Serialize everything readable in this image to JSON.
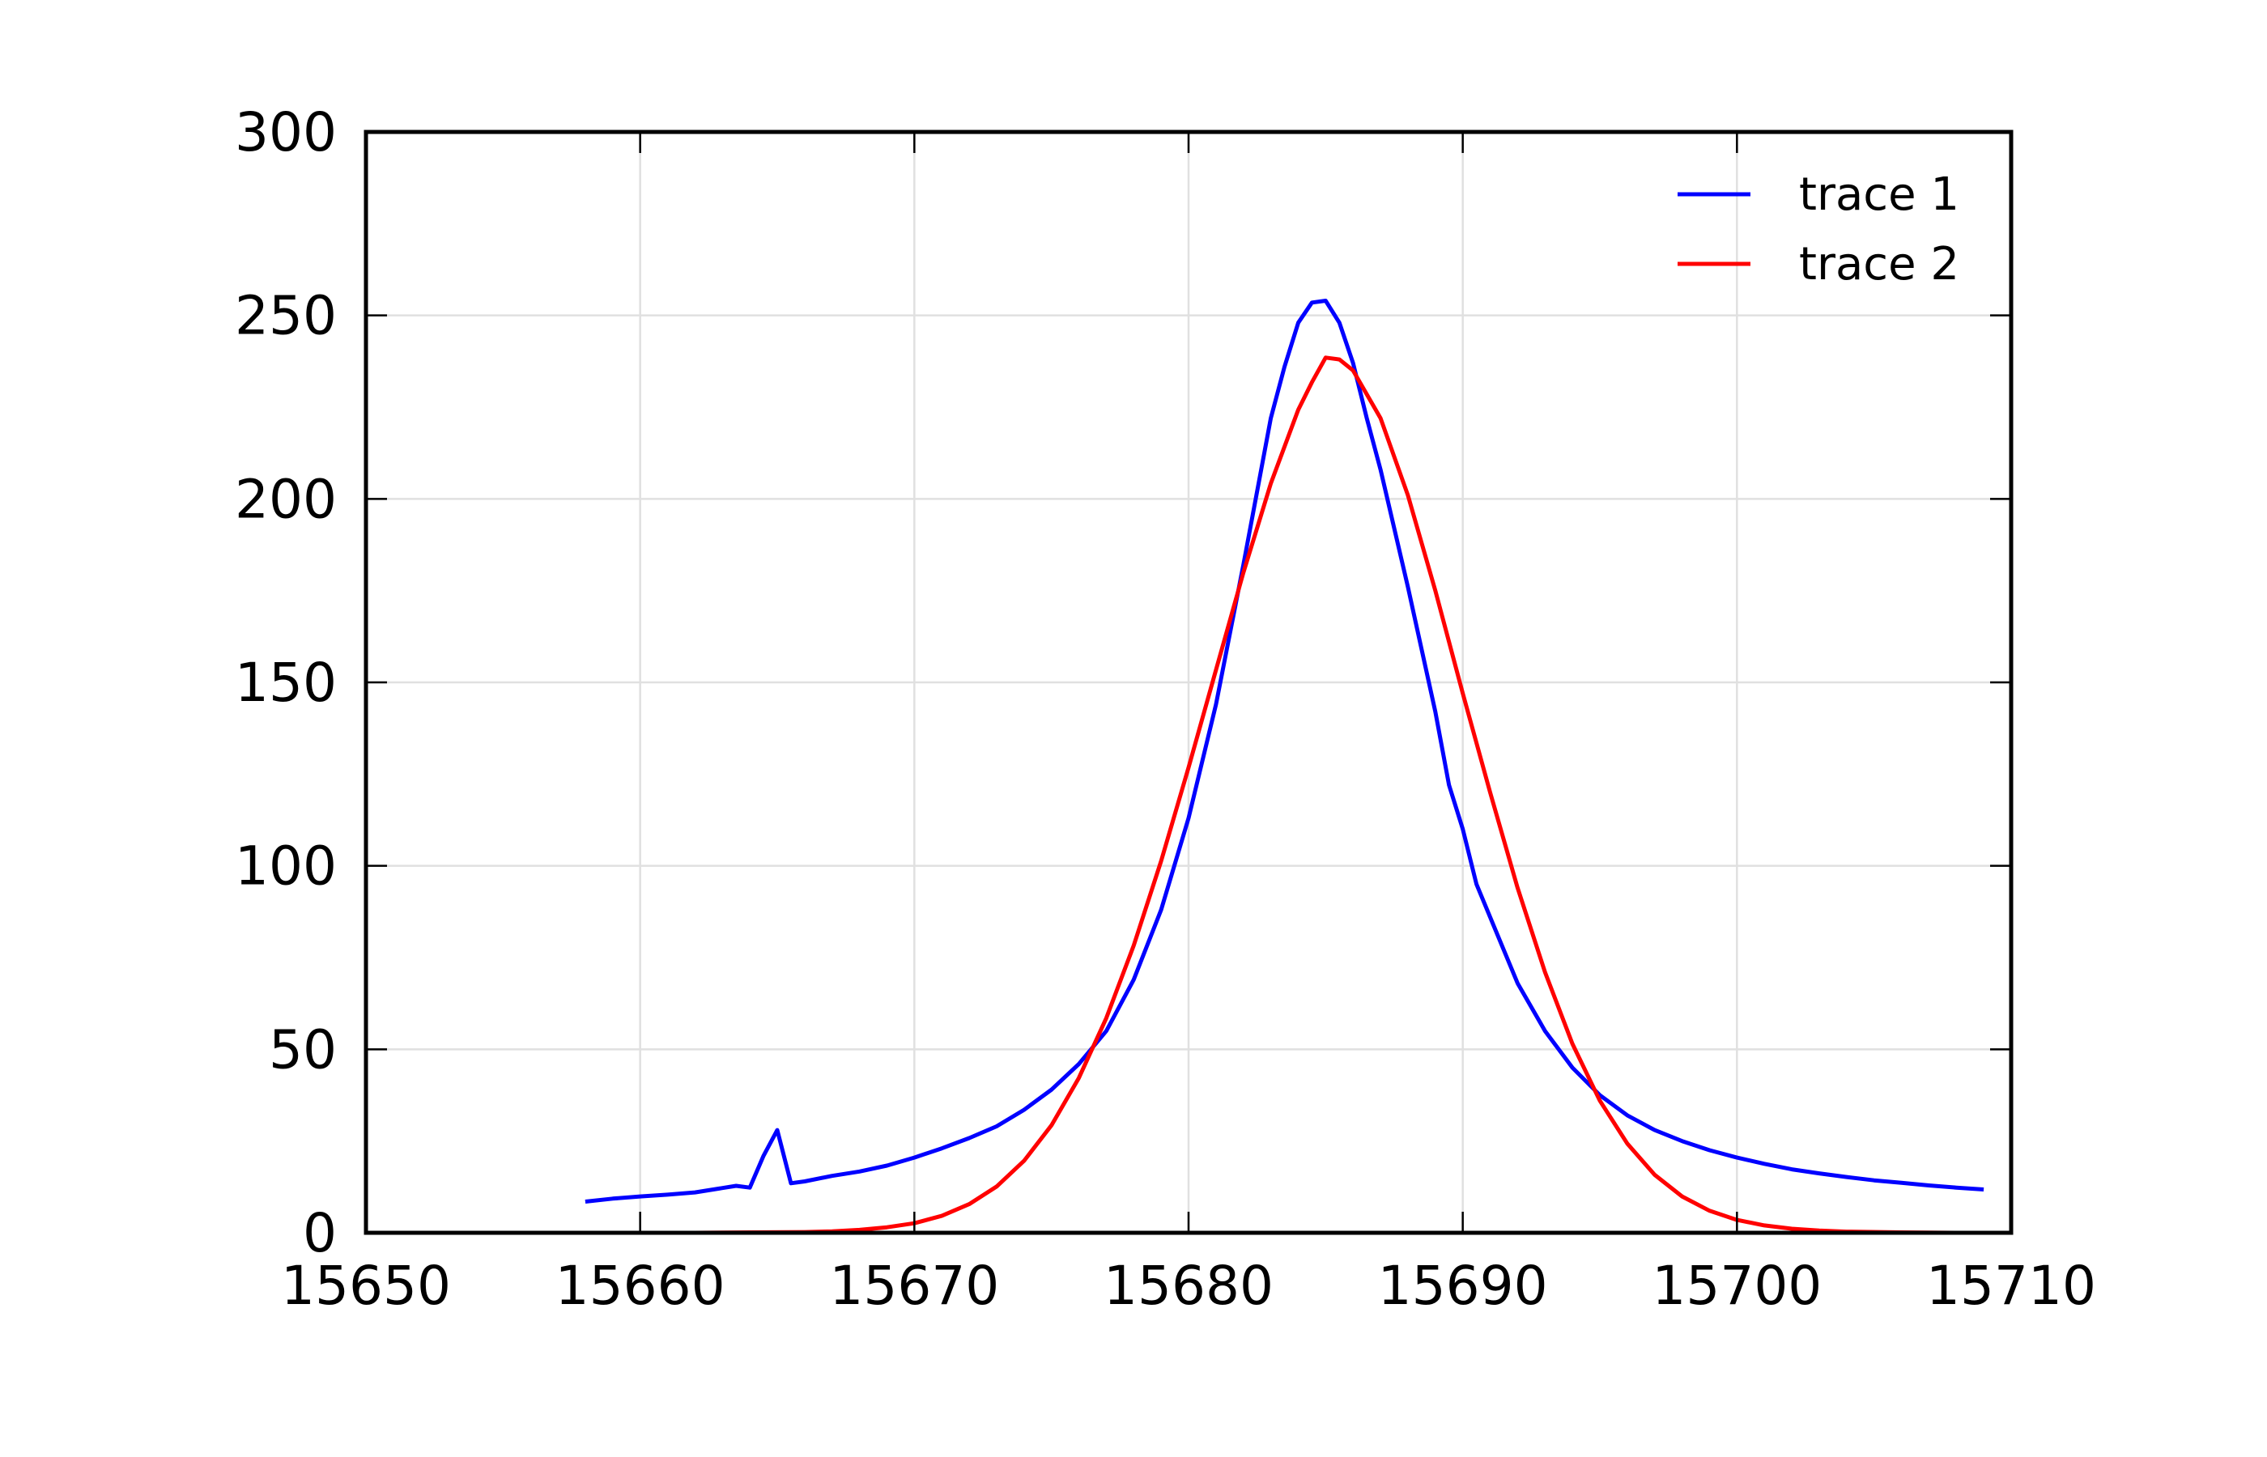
{
  "chart_data": {
    "type": "line",
    "title": "",
    "xlabel": "",
    "ylabel": "",
    "xlim": [
      15650,
      15710
    ],
    "ylim": [
      0,
      300
    ],
    "xticks": [
      "15650",
      "15660",
      "15670",
      "15680",
      "15690",
      "15700",
      "15710"
    ],
    "yticks": [
      "0",
      "50",
      "100",
      "150",
      "200",
      "250",
      "300"
    ],
    "grid": true,
    "legend_position": "top-right",
    "series": [
      {
        "name": "trace 1",
        "color": "#0000ff",
        "points": [
          [
            15658,
            8.5
          ],
          [
            15659,
            9.3
          ],
          [
            15660,
            9.9
          ],
          [
            15661,
            10.4
          ],
          [
            15662,
            11.0
          ],
          [
            15663,
            12.2
          ],
          [
            15663.5,
            12.8
          ],
          [
            15664,
            12.3
          ],
          [
            15664.5,
            21.0
          ],
          [
            15665,
            28.0
          ],
          [
            15665.5,
            13.5
          ],
          [
            15666,
            14.0
          ],
          [
            15667,
            15.5
          ],
          [
            15668,
            16.7
          ],
          [
            15669,
            18.3
          ],
          [
            15670,
            20.5
          ],
          [
            15671,
            23.0
          ],
          [
            15672,
            25.8
          ],
          [
            15673,
            29.0
          ],
          [
            15674,
            33.5
          ],
          [
            15675,
            39.0
          ],
          [
            15676,
            46.0
          ],
          [
            15677,
            55.0
          ],
          [
            15678,
            69.0
          ],
          [
            15679,
            88.0
          ],
          [
            15680,
            113.0
          ],
          [
            15681,
            144.0
          ],
          [
            15682,
            182.0
          ],
          [
            15683,
            222.0
          ],
          [
            15683.5,
            236.0
          ],
          [
            15684,
            248.0
          ],
          [
            15684.5,
            253.5
          ],
          [
            15685,
            254.0
          ],
          [
            15685.5,
            248.0
          ],
          [
            15686,
            237.0
          ],
          [
            15686.5,
            222.0
          ],
          [
            15687,
            208.0
          ],
          [
            15688,
            176.0
          ],
          [
            15689,
            142.0
          ],
          [
            15689.5,
            122.0
          ],
          [
            15690,
            110.0
          ],
          [
            15690.5,
            95.0
          ],
          [
            15691,
            86.0
          ],
          [
            15692,
            68.0
          ],
          [
            15693,
            55.0
          ],
          [
            15694,
            45.0
          ],
          [
            15695,
            37.5
          ],
          [
            15696,
            32.0
          ],
          [
            15697,
            28.0
          ],
          [
            15698,
            25.0
          ],
          [
            15699,
            22.5
          ],
          [
            15700,
            20.5
          ],
          [
            15701,
            18.8
          ],
          [
            15702,
            17.3
          ],
          [
            15703,
            16.2
          ],
          [
            15704,
            15.2
          ],
          [
            15705,
            14.3
          ],
          [
            15706,
            13.6
          ],
          [
            15707,
            12.9
          ],
          [
            15708,
            12.3
          ],
          [
            15709,
            11.8
          ]
        ]
      },
      {
        "name": "trace 2",
        "color": "#ff0000",
        "points": [
          [
            15658,
            0.0
          ],
          [
            15660,
            0.0
          ],
          [
            15662,
            0.0
          ],
          [
            15664,
            0.1
          ],
          [
            15666,
            0.2
          ],
          [
            15667,
            0.4
          ],
          [
            15668,
            0.8
          ],
          [
            15669,
            1.5
          ],
          [
            15670,
            2.6
          ],
          [
            15671,
            4.6
          ],
          [
            15672,
            7.8
          ],
          [
            15673,
            12.6
          ],
          [
            15674,
            19.6
          ],
          [
            15675,
            29.3
          ],
          [
            15676,
            42.2
          ],
          [
            15677,
            58.5
          ],
          [
            15678,
            78.3
          ],
          [
            15679,
            101.3
          ],
          [
            15680,
            126.8
          ],
          [
            15681,
            153.4
          ],
          [
            15682,
            179.9
          ],
          [
            15683,
            204.2
          ],
          [
            15684,
            224.3
          ],
          [
            15684.5,
            231.8
          ],
          [
            15685,
            238.5
          ],
          [
            15685.5,
            238.0
          ],
          [
            15686,
            235.0
          ],
          [
            15687,
            222.0
          ],
          [
            15688,
            201.0
          ],
          [
            15689,
            175.0
          ],
          [
            15690,
            147.0
          ],
          [
            15691,
            120.0
          ],
          [
            15692,
            94.0
          ],
          [
            15693,
            71.0
          ],
          [
            15694,
            51.5
          ],
          [
            15695,
            36.0
          ],
          [
            15696,
            24.3
          ],
          [
            15697,
            15.8
          ],
          [
            15698,
            9.9
          ],
          [
            15699,
            6.0
          ],
          [
            15700,
            3.5
          ],
          [
            15701,
            2.0
          ],
          [
            15702,
            1.1
          ],
          [
            15703,
            0.6
          ],
          [
            15704,
            0.3
          ],
          [
            15706,
            0.1
          ],
          [
            15708,
            0.0
          ],
          [
            15710,
            0.0
          ]
        ]
      }
    ]
  }
}
